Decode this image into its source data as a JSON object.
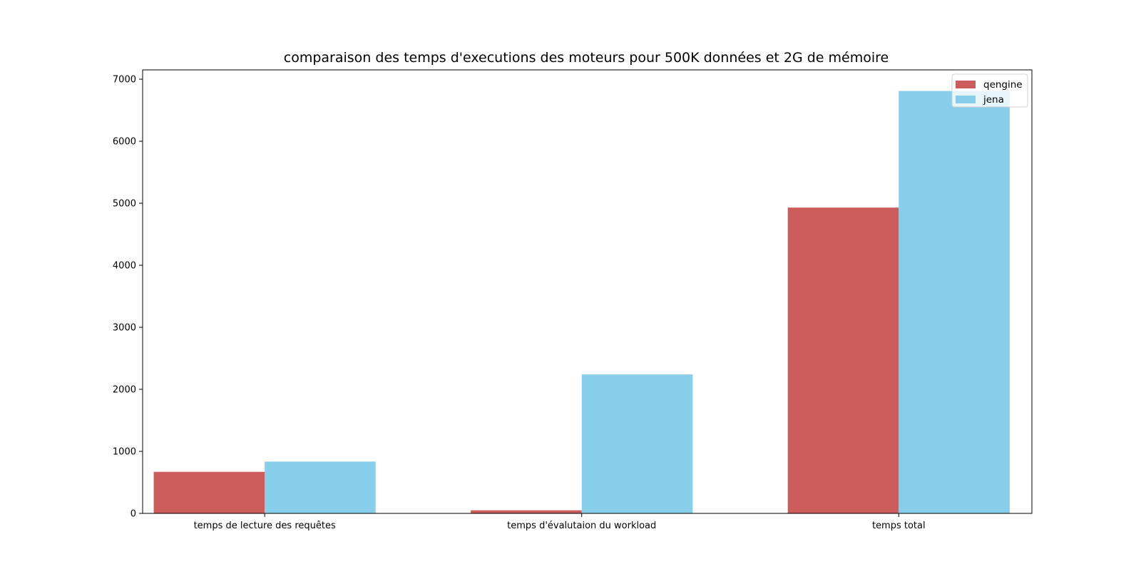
{
  "chart_data": {
    "type": "bar",
    "title": "comparaison des temps d'executions des moteurs pour 500K données et 2G de mémoire",
    "xlabel": "",
    "ylabel": "",
    "categories": [
      "temps de lecture des requêtes",
      "temps d'évalutaion du workload",
      "temps total"
    ],
    "series": [
      {
        "name": "qengine",
        "color": "#cd5c5c",
        "values": [
          670,
          50,
          4930
        ]
      },
      {
        "name": "jena",
        "color": "#87ceeb",
        "values": [
          835,
          2240,
          6810
        ]
      }
    ],
    "ylim": [
      0,
      7150
    ],
    "yticks": [
      0,
      1000,
      2000,
      3000,
      4000,
      5000,
      6000,
      7000
    ],
    "grid": false,
    "legend_position": "top-right"
  }
}
